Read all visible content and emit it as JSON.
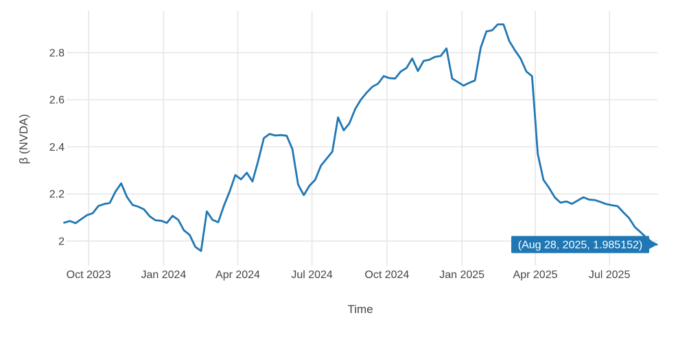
{
  "figure": {
    "background": "#ffffff",
    "tooltip": {
      "label": "(Aug 28, 2025, 1.985152)",
      "bg_color": "#1f77b4",
      "text_color": "#ffffff"
    }
  },
  "chart_data": {
    "type": "line",
    "title": "",
    "xlabel": "Time",
    "ylabel": "β (NVDA)",
    "grid": true,
    "legend": "none",
    "line_color": "#1f77b4",
    "gridline_color": "#e6e6e6",
    "tick_label_color": "#444444",
    "xlim": [
      "2023-09-01",
      "2025-08-28"
    ],
    "ylim": [
      1.895,
      2.977
    ],
    "x_ticks": [
      {
        "date": "2023-10-01",
        "label": "Oct 2023"
      },
      {
        "date": "2024-01-01",
        "label": "Jan 2024"
      },
      {
        "date": "2024-04-01",
        "label": "Apr 2024"
      },
      {
        "date": "2024-07-01",
        "label": "Jul 2024"
      },
      {
        "date": "2024-10-01",
        "label": "Oct 2024"
      },
      {
        "date": "2025-01-01",
        "label": "Jan 2025"
      },
      {
        "date": "2025-04-01",
        "label": "Apr 2025"
      },
      {
        "date": "2025-07-01",
        "label": "Jul 2025"
      }
    ],
    "y_ticks": [
      {
        "value": 2.0,
        "label": "2"
      },
      {
        "value": 2.2,
        "label": "2.2"
      },
      {
        "value": 2.4,
        "label": "2.4"
      },
      {
        "value": 2.6,
        "label": "2.6"
      },
      {
        "value": 2.8,
        "label": "2.8"
      }
    ],
    "annotation": {
      "label": "(Aug 28, 2025, 1.985152)",
      "x": "2025-08-28",
      "y": 1.985152
    },
    "series": [
      {
        "name": "β (NVDA)",
        "color": "#1f77b4",
        "points": [
          [
            "2023-09-01",
            2.078
          ],
          [
            "2023-09-08",
            2.085
          ],
          [
            "2023-09-15",
            2.076
          ],
          [
            "2023-09-22",
            2.093
          ],
          [
            "2023-09-29",
            2.11
          ],
          [
            "2023-10-06",
            2.118
          ],
          [
            "2023-10-13",
            2.149
          ],
          [
            "2023-10-20",
            2.157
          ],
          [
            "2023-10-27",
            2.162
          ],
          [
            "2023-11-03",
            2.21
          ],
          [
            "2023-11-10",
            2.245
          ],
          [
            "2023-11-17",
            2.187
          ],
          [
            "2023-11-24",
            2.153
          ],
          [
            "2023-12-01",
            2.146
          ],
          [
            "2023-12-08",
            2.134
          ],
          [
            "2023-12-15",
            2.105
          ],
          [
            "2023-12-22",
            2.088
          ],
          [
            "2023-12-29",
            2.086
          ],
          [
            "2024-01-05",
            2.077
          ],
          [
            "2024-01-12",
            2.107
          ],
          [
            "2024-01-19",
            2.09
          ],
          [
            "2024-01-26",
            2.045
          ],
          [
            "2024-02-02",
            2.026
          ],
          [
            "2024-02-09",
            1.975
          ],
          [
            "2024-02-16",
            1.958
          ],
          [
            "2024-02-23",
            2.126
          ],
          [
            "2024-03-01",
            2.09
          ],
          [
            "2024-03-08",
            2.08
          ],
          [
            "2024-03-15",
            2.15
          ],
          [
            "2024-03-22",
            2.21
          ],
          [
            "2024-03-29",
            2.28
          ],
          [
            "2024-04-05",
            2.262
          ],
          [
            "2024-04-12",
            2.29
          ],
          [
            "2024-04-19",
            2.253
          ],
          [
            "2024-04-26",
            2.34
          ],
          [
            "2024-05-03",
            2.437
          ],
          [
            "2024-05-10",
            2.455
          ],
          [
            "2024-05-17",
            2.448
          ],
          [
            "2024-05-24",
            2.45
          ],
          [
            "2024-05-31",
            2.447
          ],
          [
            "2024-06-07",
            2.39
          ],
          [
            "2024-06-14",
            2.24
          ],
          [
            "2024-06-21",
            2.195
          ],
          [
            "2024-06-28",
            2.235
          ],
          [
            "2024-07-05",
            2.26
          ],
          [
            "2024-07-12",
            2.32
          ],
          [
            "2024-07-19",
            2.35
          ],
          [
            "2024-07-26",
            2.38
          ],
          [
            "2024-08-02",
            2.525
          ],
          [
            "2024-08-09",
            2.47
          ],
          [
            "2024-08-16",
            2.5
          ],
          [
            "2024-08-23",
            2.56
          ],
          [
            "2024-08-30",
            2.6
          ],
          [
            "2024-09-06",
            2.63
          ],
          [
            "2024-09-13",
            2.655
          ],
          [
            "2024-09-20",
            2.668
          ],
          [
            "2024-09-27",
            2.7
          ],
          [
            "2024-10-04",
            2.692
          ],
          [
            "2024-10-11",
            2.69
          ],
          [
            "2024-10-18",
            2.72
          ],
          [
            "2024-10-25",
            2.735
          ],
          [
            "2024-11-01",
            2.775
          ],
          [
            "2024-11-08",
            2.722
          ],
          [
            "2024-11-15",
            2.765
          ],
          [
            "2024-11-22",
            2.77
          ],
          [
            "2024-11-29",
            2.782
          ],
          [
            "2024-12-06",
            2.786
          ],
          [
            "2024-12-13",
            2.818
          ],
          [
            "2024-12-20",
            2.69
          ],
          [
            "2024-12-27",
            2.675
          ],
          [
            "2025-01-03",
            2.66
          ],
          [
            "2025-01-10",
            2.672
          ],
          [
            "2025-01-17",
            2.682
          ],
          [
            "2025-01-24",
            2.82
          ],
          [
            "2025-01-31",
            2.89
          ],
          [
            "2025-02-07",
            2.895
          ],
          [
            "2025-02-14",
            2.92
          ],
          [
            "2025-02-21",
            2.92
          ],
          [
            "2025-02-28",
            2.85
          ],
          [
            "2025-03-07",
            2.81
          ],
          [
            "2025-03-14",
            2.775
          ],
          [
            "2025-03-21",
            2.72
          ],
          [
            "2025-03-28",
            2.7
          ],
          [
            "2025-04-04",
            2.37
          ],
          [
            "2025-04-11",
            2.26
          ],
          [
            "2025-04-18",
            2.225
          ],
          [
            "2025-04-25",
            2.185
          ],
          [
            "2025-05-02",
            2.163
          ],
          [
            "2025-05-09",
            2.168
          ],
          [
            "2025-05-16",
            2.158
          ],
          [
            "2025-05-23",
            2.172
          ],
          [
            "2025-05-30",
            2.186
          ],
          [
            "2025-06-06",
            2.176
          ],
          [
            "2025-06-13",
            2.174
          ],
          [
            "2025-06-20",
            2.166
          ],
          [
            "2025-06-27",
            2.157
          ],
          [
            "2025-07-04",
            2.152
          ],
          [
            "2025-07-11",
            2.148
          ],
          [
            "2025-07-18",
            2.122
          ],
          [
            "2025-07-25",
            2.098
          ],
          [
            "2025-08-01",
            2.06
          ],
          [
            "2025-08-08",
            2.038
          ],
          [
            "2025-08-15",
            2.015
          ],
          [
            "2025-08-22",
            1.995
          ],
          [
            "2025-08-28",
            1.985152
          ]
        ]
      }
    ]
  }
}
